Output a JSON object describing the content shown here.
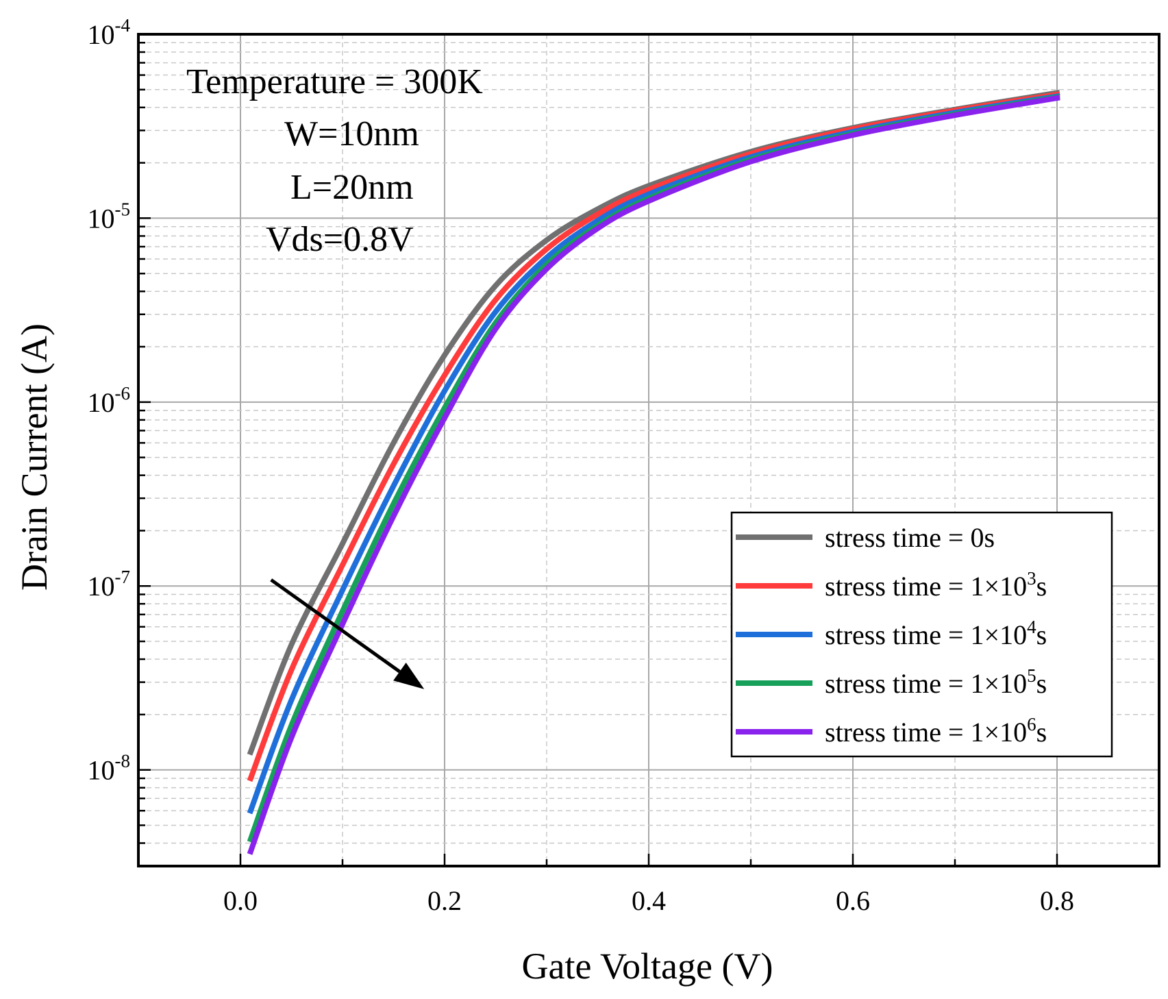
{
  "chart_data": {
    "type": "line",
    "title": "",
    "xlabel": "Gate Voltage (V)",
    "ylabel": "Drain Current (A)",
    "xlim": [
      -0.1,
      0.9
    ],
    "ylim": [
      3e-09,
      0.0001
    ],
    "yscale": "log",
    "grid": true,
    "x_ticks": [
      {
        "value": 0.0,
        "label": "0.0"
      },
      {
        "value": 0.2,
        "label": "0.2"
      },
      {
        "value": 0.4,
        "label": "0.4"
      },
      {
        "value": 0.6,
        "label": "0.6"
      },
      {
        "value": 0.8,
        "label": "0.8"
      }
    ],
    "y_ticks": [
      {
        "value": 1e-08,
        "base": "10",
        "exp": "-8"
      },
      {
        "value": 1e-07,
        "base": "10",
        "exp": "-7"
      },
      {
        "value": 1e-06,
        "base": "10",
        "exp": "-6"
      },
      {
        "value": 1e-05,
        "base": "10",
        "exp": "-5"
      },
      {
        "value": 0.0001,
        "base": "10",
        "exp": "-4"
      }
    ],
    "annotations": [
      "Temperature = 300K",
      "W=10nm",
      "L=20nm",
      "Vds=0.8V"
    ],
    "arrow": {
      "from": [
        0.03,
        1.08e-07
      ],
      "to": [
        0.18,
        2.75e-08
      ],
      "meaning": "increasing stress time"
    },
    "legend_position": "bottom-right",
    "series": [
      {
        "name": "stress time = 0s",
        "legend_prefix": "stress time = ",
        "legend_base": "0s",
        "legend_exp": "",
        "legend_suffix": "",
        "color": "#707070",
        "x": [
          0.01,
          0.05,
          0.1,
          0.15,
          0.2,
          0.25,
          0.3,
          0.35,
          0.4,
          0.5,
          0.6,
          0.7,
          0.8
        ],
        "y": [
          1.25e-08,
          4.8e-08,
          1.7e-07,
          6e-07,
          1.8e-06,
          4.3e-06,
          7.6e-06,
          1.12e-05,
          1.5e-05,
          2.3e-05,
          3.1e-05,
          3.9e-05,
          4.8e-05
        ]
      },
      {
        "name": "stress time = 1×10^3s",
        "legend_prefix": "stress time = ",
        "legend_base": "1×10",
        "legend_exp": "3",
        "legend_suffix": "s",
        "color": "#ff3b3b",
        "x": [
          0.01,
          0.05,
          0.1,
          0.15,
          0.2,
          0.25,
          0.3,
          0.35,
          0.4,
          0.5,
          0.6,
          0.7,
          0.8
        ],
        "y": [
          9e-09,
          3.5e-08,
          1.3e-07,
          4.6e-07,
          1.4e-06,
          3.6e-06,
          6.8e-06,
          1.05e-05,
          1.43e-05,
          2.24e-05,
          3.05e-05,
          3.85e-05,
          4.7e-05
        ]
      },
      {
        "name": "stress time = 1×10^4s",
        "legend_prefix": "stress time = ",
        "legend_base": "1×10",
        "legend_exp": "4",
        "legend_suffix": "s",
        "color": "#1f6fdb",
        "x": [
          0.01,
          0.05,
          0.1,
          0.15,
          0.2,
          0.25,
          0.3,
          0.35,
          0.4,
          0.5,
          0.6,
          0.7,
          0.8
        ],
        "y": [
          6e-09,
          2.4e-08,
          9.5e-08,
          3.5e-07,
          1.15e-06,
          3.1e-06,
          6.1e-06,
          9.7e-06,
          1.35e-05,
          2.15e-05,
          2.95e-05,
          3.75e-05,
          4.6e-05
        ]
      },
      {
        "name": "stress time = 1×10^5s",
        "legend_prefix": "stress time = ",
        "legend_base": "1×10",
        "legend_exp": "5",
        "legend_suffix": "s",
        "color": "#17a05a",
        "x": [
          0.01,
          0.05,
          0.1,
          0.15,
          0.2,
          0.25,
          0.3,
          0.35,
          0.4,
          0.5,
          0.6,
          0.7,
          0.8
        ],
        "y": [
          4.2e-09,
          1.75e-08,
          7.3e-08,
          2.8e-07,
          9.3e-07,
          2.7e-06,
          5.6e-06,
          9.1e-06,
          1.28e-05,
          2.08e-05,
          2.88e-05,
          3.68e-05,
          4.55e-05
        ]
      },
      {
        "name": "stress time = 1×10^6s",
        "legend_prefix": "stress time = ",
        "legend_base": "1×10",
        "legend_exp": "6",
        "legend_suffix": "s",
        "color": "#8a22ee",
        "x": [
          0.01,
          0.05,
          0.1,
          0.15,
          0.2,
          0.25,
          0.3,
          0.35,
          0.4,
          0.5,
          0.6,
          0.7,
          0.8
        ],
        "y": [
          3.6e-09,
          1.5e-08,
          6.2e-08,
          2.4e-07,
          8.2e-07,
          2.5e-06,
          5.3e-06,
          8.8e-06,
          1.24e-05,
          2.03e-05,
          2.83e-05,
          3.63e-05,
          4.5e-05
        ]
      }
    ]
  }
}
